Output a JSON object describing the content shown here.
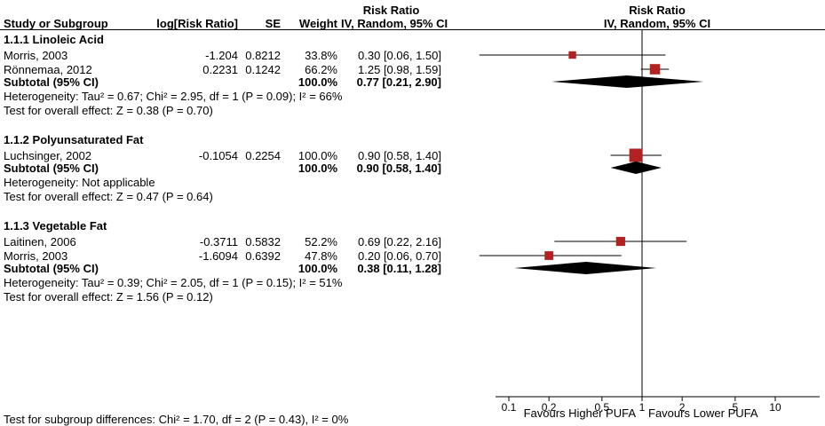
{
  "header": {
    "study": "Study or Subgroup",
    "log_rr": "log[Risk Ratio]",
    "se": "SE",
    "weight": "Weight",
    "risk_ratio_text_col": "Risk Ratio",
    "iv_random_text_col": "IV, Random, 95% CI",
    "risk_ratio_plot_col": "Risk Ratio",
    "iv_random_plot_col": "IV, Random, 95% CI"
  },
  "footer": {
    "favours_left": "Favours Higher PUFA",
    "favours_right": "Favours Lower PUFA",
    "subgroup_test": "Test for subgroup differences: Chi² = 1.70, df = 2 (P = 0.43), I² = 0%"
  },
  "chart_data": {
    "type": "forest",
    "scale": "log10",
    "marker_color": "#b22222",
    "diamond_color": "#000000",
    "axis": {
      "ticks": [
        0.1,
        0.2,
        0.5,
        1,
        2,
        5,
        10
      ],
      "no_effect_line": 1,
      "min": 0.1,
      "max": 10
    },
    "groups": [
      {
        "label": "1.1.1 Linoleic Acid",
        "studies": [
          {
            "name": "Morris, 2003",
            "log_rr": "-1.204",
            "se": "0.8212",
            "weight": "33.8%",
            "weight_pct": 33.8,
            "ci_text": "0.30 [0.06, 1.50]",
            "rr": 0.3,
            "low": 0.06,
            "high": 1.5
          },
          {
            "name": "Rönnemaa, 2012",
            "log_rr": "0.2231",
            "se": "0.1242",
            "weight": "66.2%",
            "weight_pct": 66.2,
            "ci_text": "1.25 [0.98, 1.59]",
            "rr": 1.25,
            "low": 0.98,
            "high": 1.59
          }
        ],
        "subtotal": {
          "label": "Subtotal (95% CI)",
          "weight": "100.0%",
          "ci_text": "0.77 [0.21, 2.90]",
          "rr": 0.77,
          "low": 0.21,
          "high": 2.9
        },
        "heterogeneity": "Heterogeneity: Tau² = 0.67; Chi² = 2.95, df = 1 (P = 0.09); I² = 66%",
        "overall_effect": "Test for overall effect: Z = 0.38 (P = 0.70)"
      },
      {
        "label": "1.1.2 Polyunsaturated Fat",
        "studies": [
          {
            "name": "Luchsinger, 2002",
            "log_rr": "-0.1054",
            "se": "0.2254",
            "weight": "100.0%",
            "weight_pct": 100.0,
            "ci_text": "0.90 [0.58, 1.40]",
            "rr": 0.9,
            "low": 0.58,
            "high": 1.4
          }
        ],
        "subtotal": {
          "label": "Subtotal (95% CI)",
          "weight": "100.0%",
          "ci_text": "0.90 [0.58, 1.40]",
          "rr": 0.9,
          "low": 0.58,
          "high": 1.4
        },
        "heterogeneity": "Heterogeneity: Not applicable",
        "overall_effect": "Test for overall effect: Z = 0.47 (P = 0.64)"
      },
      {
        "label": "1.1.3 Vegetable Fat",
        "studies": [
          {
            "name": "Laitinen, 2006",
            "log_rr": "-0.3711",
            "se": "0.5832",
            "weight": "52.2%",
            "weight_pct": 52.2,
            "ci_text": "0.69 [0.22, 2.16]",
            "rr": 0.69,
            "low": 0.22,
            "high": 2.16
          },
          {
            "name": "Morris, 2003",
            "log_rr": "-1.6094",
            "se": "0.6392",
            "weight": "47.8%",
            "weight_pct": 47.8,
            "ci_text": "0.20 [0.06, 0.70]",
            "rr": 0.2,
            "low": 0.06,
            "high": 0.7
          }
        ],
        "subtotal": {
          "label": "Subtotal (95% CI)",
          "weight": "100.0%",
          "ci_text": "0.38 [0.11, 1.28]",
          "rr": 0.38,
          "low": 0.11,
          "high": 1.28
        },
        "heterogeneity": "Heterogeneity: Tau² = 0.39; Chi² = 2.05, df = 1 (P = 0.15); I² = 51%",
        "overall_effect": "Test for overall effect: Z = 1.56 (P = 0.12)"
      }
    ]
  }
}
